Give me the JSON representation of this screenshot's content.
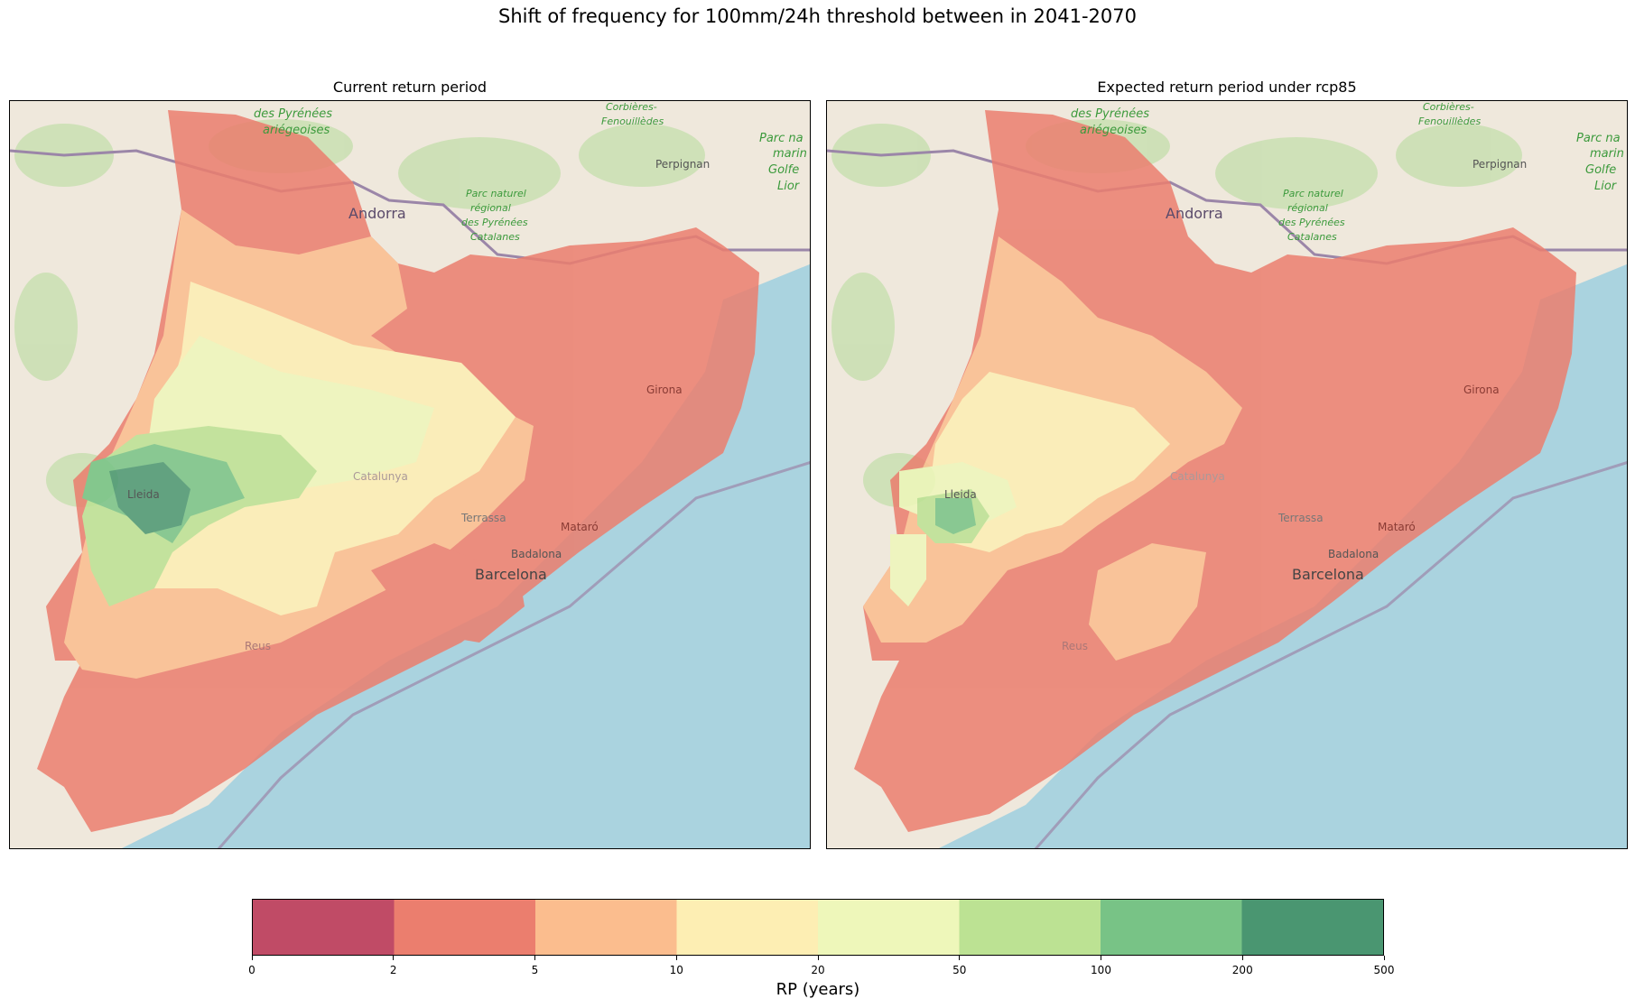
{
  "figure": {
    "suptitle": "Shift of frequency for 100mm/24h threshold between in 2041-2070"
  },
  "panels": [
    {
      "title": "Current return period",
      "place_labels": [
        "des Pyrénées",
        "ariégeoises",
        "Corbières-",
        "Fenouillèdes",
        "Parc na",
        "marin",
        "Golfe",
        "Lior",
        "Perpignan",
        "Andorra",
        "Parc naturel",
        "régional",
        "des Pyrénées",
        "Catalanes",
        "Girona",
        "Catalunya",
        "Lleida",
        "Terrassa",
        "Mataró",
        "Badalona",
        "Barcelona",
        "Reus"
      ]
    },
    {
      "title": "Expected return period under rcp85",
      "place_labels": [
        "des Pyrénées",
        "ariégeoises",
        "Corbières-",
        "Fenouillèdes",
        "Parc na",
        "marin",
        "Golfe",
        "Lior",
        "Perpignan",
        "Andorra",
        "Parc naturel",
        "régional",
        "des Pyrénées",
        "Catalanes",
        "Girona",
        "Catalunya",
        "Lleida",
        "Terrassa",
        "Mataró",
        "Badalona",
        "Barcelona",
        "Reus"
      ]
    }
  ],
  "colorbar": {
    "label": "RP (years)",
    "ticks": [
      "0",
      "2",
      "5",
      "10",
      "20",
      "50",
      "100",
      "200",
      "500"
    ],
    "bin_colors": [
      "#c04b66",
      "#eb7e6e",
      "#fbbd8e",
      "#fdeeb3",
      "#eef7ba",
      "#bce293",
      "#78c386",
      "#4a9671"
    ]
  },
  "map_colors": {
    "sea": "#aad3df",
    "land": "#efe8dc",
    "border": "#9b86a8"
  }
}
